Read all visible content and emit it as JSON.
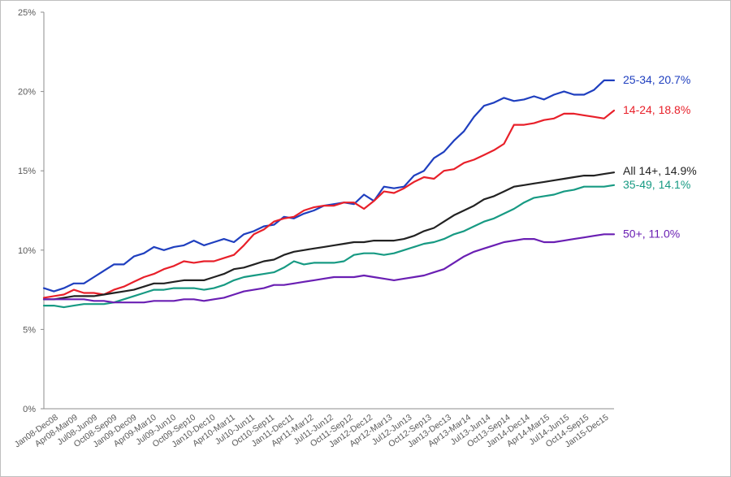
{
  "chart_data": {
    "type": "line",
    "title": "",
    "xlabel": "",
    "ylabel": "",
    "ylim": [
      0,
      25
    ],
    "y_ticks": [
      "0%",
      "5%",
      "10%",
      "15%",
      "20%",
      "25%"
    ],
    "grid": false,
    "legend": "end-of-line labels on the right",
    "x_tick_labels": [
      "Jan08-Dec08",
      "Apr08-Mar09",
      "Jul08-Jun09",
      "Oct08-Sep09",
      "Jan09-Dec09",
      "Apr09-Mar10",
      "Jul09-Jun10",
      "Oct09-Sep10",
      "Jan10-Dec10",
      "Apr10-Mar11",
      "Jul10-Jun11",
      "Oct10-Sep11",
      "Jan11-Dec11",
      "Apr11-Mar12",
      "Jul11-Jun12",
      "Oct11-Sep12",
      "Jan12-Dec12",
      "Apr12-Mar13",
      "Jul12-Jun13",
      "Oct12-Sep13",
      "Jan13-Dec13",
      "Apr13-Mar14",
      "Jul13-Jun14",
      "Oct13-Sep14",
      "Jan14-Dec14",
      "Apr14-Mar15",
      "Jul14-Jun15",
      "Oct14-Sep15",
      "Jan15-Dec15"
    ],
    "series": [
      {
        "label": "25-34, 20.7%",
        "color": "#1f3fbf",
        "values": [
          7.6,
          7.4,
          7.6,
          7.9,
          7.9,
          8.3,
          8.7,
          9.1,
          9.1,
          9.6,
          9.8,
          10.2,
          10.0,
          10.2,
          10.3,
          10.6,
          10.3,
          10.5,
          10.7,
          10.5,
          11.0,
          11.2,
          11.5,
          11.6,
          12.1,
          12.0,
          12.3,
          12.5,
          12.8,
          12.9,
          13.0,
          12.9,
          13.5,
          13.1,
          14.0,
          13.9,
          14.0,
          14.7,
          15.0,
          15.8,
          16.2,
          16.9,
          17.5,
          18.4,
          19.1,
          19.3,
          19.6,
          19.4,
          19.5,
          19.7,
          19.5,
          19.8,
          20.0,
          19.8,
          19.8,
          20.1,
          20.7,
          20.7
        ]
      },
      {
        "label": "14-24, 18.8%",
        "color": "#e8202a",
        "values": [
          7.0,
          7.1,
          7.2,
          7.5,
          7.3,
          7.3,
          7.2,
          7.5,
          7.7,
          8.0,
          8.3,
          8.5,
          8.8,
          9.0,
          9.3,
          9.2,
          9.3,
          9.3,
          9.5,
          9.7,
          10.3,
          11.0,
          11.3,
          11.8,
          12.0,
          12.1,
          12.5,
          12.7,
          12.8,
          12.8,
          13.0,
          13.0,
          12.6,
          13.1,
          13.7,
          13.6,
          13.9,
          14.3,
          14.6,
          14.5,
          15.0,
          15.1,
          15.5,
          15.7,
          16.0,
          16.3,
          16.7,
          17.9,
          17.9,
          18.0,
          18.2,
          18.3,
          18.6,
          18.6,
          18.5,
          18.4,
          18.3,
          18.8
        ]
      },
      {
        "label": "All 14+, 14.9%",
        "color": "#222222",
        "values": [
          6.9,
          6.9,
          7.0,
          7.1,
          7.1,
          7.1,
          7.2,
          7.3,
          7.4,
          7.5,
          7.7,
          7.9,
          7.9,
          8.0,
          8.1,
          8.1,
          8.1,
          8.3,
          8.5,
          8.8,
          8.9,
          9.1,
          9.3,
          9.4,
          9.7,
          9.9,
          10.0,
          10.1,
          10.2,
          10.3,
          10.4,
          10.5,
          10.5,
          10.6,
          10.6,
          10.6,
          10.7,
          10.9,
          11.2,
          11.4,
          11.8,
          12.2,
          12.5,
          12.8,
          13.2,
          13.4,
          13.7,
          14.0,
          14.1,
          14.2,
          14.3,
          14.4,
          14.5,
          14.6,
          14.7,
          14.7,
          14.8,
          14.9
        ]
      },
      {
        "label": "35-49, 14.1%",
        "color": "#179a83",
        "values": [
          6.5,
          6.5,
          6.4,
          6.5,
          6.6,
          6.6,
          6.6,
          6.7,
          6.9,
          7.1,
          7.3,
          7.5,
          7.5,
          7.6,
          7.6,
          7.6,
          7.5,
          7.6,
          7.8,
          8.1,
          8.3,
          8.4,
          8.5,
          8.6,
          8.9,
          9.3,
          9.1,
          9.2,
          9.2,
          9.2,
          9.3,
          9.7,
          9.8,
          9.8,
          9.7,
          9.8,
          10.0,
          10.2,
          10.4,
          10.5,
          10.7,
          11.0,
          11.2,
          11.5,
          11.8,
          12.0,
          12.3,
          12.6,
          13.0,
          13.3,
          13.4,
          13.5,
          13.7,
          13.8,
          14.0,
          14.0,
          14.0,
          14.1
        ]
      },
      {
        "label": "50+, 11.0%",
        "color": "#6a1fb3",
        "values": [
          6.9,
          6.9,
          6.9,
          6.9,
          6.9,
          6.8,
          6.8,
          6.7,
          6.7,
          6.7,
          6.7,
          6.8,
          6.8,
          6.8,
          6.9,
          6.9,
          6.8,
          6.9,
          7.0,
          7.2,
          7.4,
          7.5,
          7.6,
          7.8,
          7.8,
          7.9,
          8.0,
          8.1,
          8.2,
          8.3,
          8.3,
          8.3,
          8.4,
          8.3,
          8.2,
          8.1,
          8.2,
          8.3,
          8.4,
          8.6,
          8.8,
          9.2,
          9.6,
          9.9,
          10.1,
          10.3,
          10.5,
          10.6,
          10.7,
          10.7,
          10.5,
          10.5,
          10.6,
          10.7,
          10.8,
          10.9,
          11.0,
          11.0
        ]
      }
    ]
  }
}
